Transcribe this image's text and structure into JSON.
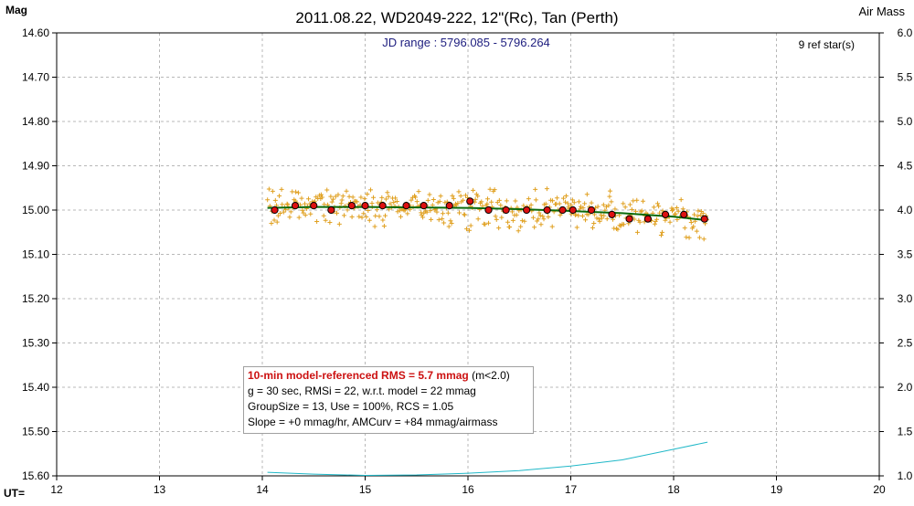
{
  "chart_data": {
    "type": "scatter",
    "title": "2011.08.22, WD2049-222, 12\"(Rc), Tan (Perth)",
    "subtitle": "JD range : 5796.085 - 5796.264",
    "ref_stars": "9 ref star(s)",
    "ylabel_left": "Mag",
    "ylabel_right": "Air Mass",
    "xlabel": "UT=",
    "xlim": [
      12,
      20
    ],
    "ylim_left": [
      14.6,
      15.6
    ],
    "ylim_left_inverted": true,
    "ylim_right": [
      1.0,
      6.0
    ],
    "grid": true,
    "x_ticks": [
      "12",
      "13",
      "14",
      "15",
      "16",
      "17",
      "18",
      "19",
      "20"
    ],
    "y_ticks_left": [
      "14.60",
      "14.70",
      "14.80",
      "14.90",
      "15.00",
      "15.10",
      "15.20",
      "15.30",
      "15.40",
      "15.50",
      "15.60"
    ],
    "y_ticks_right": [
      "6.0",
      "5.5",
      "5.0",
      "4.5",
      "4.0",
      "3.5",
      "3.0",
      "2.5",
      "2.0",
      "1.5",
      "1.0"
    ],
    "colors": {
      "individual": "#e0a020",
      "binned": "#dd1111",
      "model": "#0a6a0a",
      "airmass": "#20b8c8"
    },
    "series": [
      {
        "kind": "individual",
        "mag_center": [
          [
            14.05,
            14.99
          ],
          [
            14.3,
            14.99
          ],
          [
            14.6,
            14.99
          ],
          [
            14.9,
            14.99
          ],
          [
            15.2,
            14.99
          ],
          [
            15.5,
            14.99
          ],
          [
            15.8,
            14.995
          ],
          [
            16.1,
            14.995
          ],
          [
            16.4,
            15.0
          ],
          [
            16.7,
            15.0
          ],
          [
            17.0,
            15.0
          ],
          [
            17.3,
            15.005
          ],
          [
            17.6,
            15.01
          ],
          [
            17.9,
            15.015
          ],
          [
            18.3,
            15.02
          ]
        ],
        "scatter_sd": 0.022,
        "x_range": [
          14.05,
          18.33
        ]
      },
      {
        "kind": "binned",
        "points": [
          [
            14.12,
            15.0
          ],
          [
            14.32,
            14.99
          ],
          [
            14.5,
            14.99
          ],
          [
            14.67,
            15.0
          ],
          [
            14.87,
            14.99
          ],
          [
            15.0,
            14.99
          ],
          [
            15.17,
            14.99
          ],
          [
            15.4,
            14.99
          ],
          [
            15.57,
            14.99
          ],
          [
            15.82,
            14.99
          ],
          [
            16.02,
            14.98
          ],
          [
            16.2,
            15.0
          ],
          [
            16.37,
            15.0
          ],
          [
            16.57,
            15.0
          ],
          [
            16.77,
            15.0
          ],
          [
            16.92,
            15.0
          ],
          [
            17.02,
            15.0
          ],
          [
            17.2,
            15.0
          ],
          [
            17.4,
            15.01
          ],
          [
            17.57,
            15.02
          ],
          [
            17.75,
            15.02
          ],
          [
            17.92,
            15.01
          ],
          [
            18.1,
            15.01
          ],
          [
            18.3,
            15.02
          ]
        ]
      },
      {
        "kind": "model",
        "points": [
          [
            14.05,
            14.995
          ],
          [
            14.5,
            14.993
          ],
          [
            15.0,
            14.993
          ],
          [
            15.5,
            14.994
          ],
          [
            16.0,
            14.995
          ],
          [
            16.5,
            14.998
          ],
          [
            17.0,
            15.002
          ],
          [
            17.5,
            15.007
          ],
          [
            18.0,
            15.015
          ],
          [
            18.33,
            15.023
          ]
        ]
      },
      {
        "kind": "airmass",
        "points": [
          [
            14.05,
            1.04
          ],
          [
            14.5,
            1.02
          ],
          [
            15.0,
            1.005
          ],
          [
            15.5,
            1.01
          ],
          [
            16.0,
            1.03
          ],
          [
            16.5,
            1.06
          ],
          [
            17.0,
            1.11
          ],
          [
            17.5,
            1.18
          ],
          [
            18.0,
            1.3
          ],
          [
            18.33,
            1.38
          ]
        ]
      }
    ]
  },
  "stats_box": {
    "line1_highlight": "10-min model-referenced RMS = 5.7 mmag",
    "line1_suffix": " (m<2.0)",
    "line2": "g = 30 sec, RMSi = 22, w.r.t. model = 22 mmag",
    "line3": "GroupSize = 13, Use = 100%, RCS = 1.05",
    "line4": "Slope = +0 mmag/hr, AMCurv = +84 mmag/airmass"
  }
}
